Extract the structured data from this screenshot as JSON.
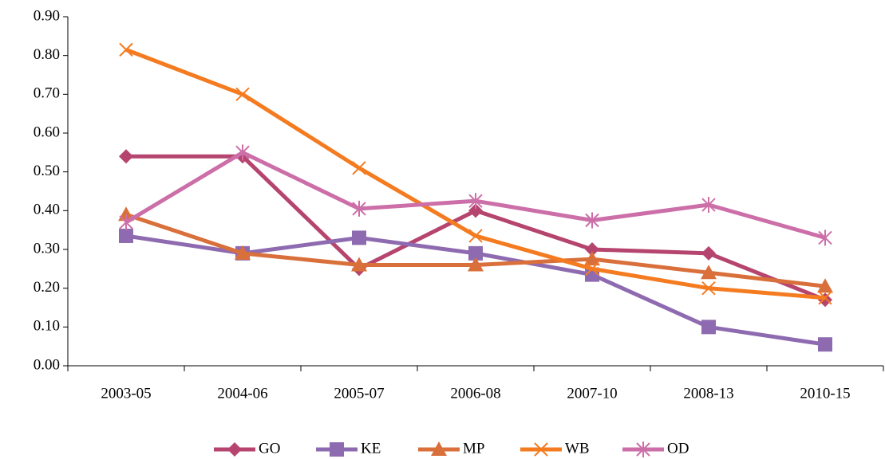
{
  "chart_data": {
    "type": "line",
    "categories": [
      "2003-05",
      "2004-06",
      "2005-07",
      "2006-08",
      "2007-10",
      "2008-13",
      "2010-15"
    ],
    "series": [
      {
        "name": "GO",
        "color": "#b5446e",
        "marker": "diamond",
        "values": [
          0.54,
          0.54,
          0.25,
          0.4,
          0.3,
          0.29,
          0.17
        ]
      },
      {
        "name": "KE",
        "color": "#8e6bb0",
        "marker": "square",
        "values": [
          0.335,
          0.29,
          0.33,
          0.29,
          0.235,
          0.1,
          0.055
        ]
      },
      {
        "name": "MP",
        "color": "#d9703b",
        "marker": "triangle",
        "values": [
          0.39,
          0.29,
          0.26,
          0.26,
          0.275,
          0.24,
          0.205
        ]
      },
      {
        "name": "WB",
        "color": "#f47b20",
        "marker": "x",
        "values": [
          0.815,
          0.7,
          0.51,
          0.335,
          0.25,
          0.2,
          0.175
        ]
      },
      {
        "name": "OD",
        "color": "#cc6fa8",
        "marker": "star",
        "values": [
          0.37,
          0.55,
          0.405,
          0.425,
          0.375,
          0.415,
          0.33
        ]
      }
    ],
    "ylim": [
      0,
      0.9
    ],
    "yticks": [
      {
        "value": 0,
        "label": "0.00"
      },
      {
        "value": 0.1,
        "label": "0.10"
      },
      {
        "value": 0.2,
        "label": "0.20"
      },
      {
        "value": 0.3,
        "label": "0.30"
      },
      {
        "value": 0.4,
        "label": "0.40"
      },
      {
        "value": 0.5,
        "label": "0.50"
      },
      {
        "value": 0.6,
        "label": "0.60"
      },
      {
        "value": 0.7,
        "label": "0.70"
      },
      {
        "value": 0.8,
        "label": "0.80"
      },
      {
        "value": 0.9,
        "label": "0.90"
      }
    ],
    "legend": "bottom"
  }
}
